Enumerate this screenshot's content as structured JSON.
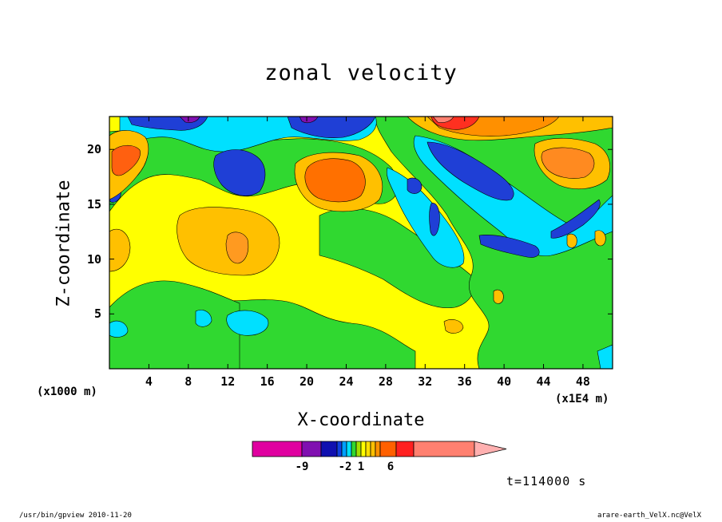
{
  "chart_data": {
    "type": "heatmap",
    "title": "zonal velocity",
    "xlabel": "X-coordinate",
    "ylabel": "Z-coordinate",
    "x_unit_left": "(x1000 m)",
    "x_unit_right": "(x1E4 m)",
    "x_ticks": [
      "4",
      "8",
      "12",
      "16",
      "20",
      "24",
      "28",
      "32",
      "36",
      "40",
      "44",
      "48"
    ],
    "y_ticks": [
      "5",
      "10",
      "15",
      "20"
    ],
    "xlim": [
      0,
      51
    ],
    "ylim": [
      0,
      23
    ],
    "colorbar": {
      "tick_labels": [
        {
          "value": -9,
          "label": "-9"
        },
        {
          "value": -2,
          "label": "-2"
        },
        {
          "value": 1,
          "label": "1"
        },
        {
          "value": 6,
          "label": "6"
        }
      ],
      "colors": [
        "#e000a0",
        "#8010b0",
        "#1010b0",
        "#1040e0",
        "#00a0ff",
        "#00e0ff",
        "#30d830",
        "#a0e000",
        "#ffff00",
        "#ffe000",
        "#ffc000",
        "#ff9000",
        "#ff6000",
        "#ff2020",
        "#ff8070",
        "#ffb0b0"
      ]
    },
    "features": [
      {
        "x": 22,
        "z": 17,
        "sign": "positive",
        "level": "strong",
        "color": "#ff7000"
      },
      {
        "x": 12,
        "z": 11.5,
        "sign": "positive",
        "level": "moderate",
        "color": "#ff9a20"
      },
      {
        "x": 16,
        "z": 18.5,
        "sign": "negative",
        "level": "strong",
        "color": "#1f3fd6"
      },
      {
        "x": 37,
        "z": 19,
        "sign": "negative",
        "level": "strong",
        "color": "#1f3fd6"
      },
      {
        "x": 44,
        "z": 11,
        "sign": "negative",
        "level": "strong",
        "color": "#1f3fd6"
      },
      {
        "x": 36,
        "z": 22.5,
        "sign": "positive",
        "level": "very strong",
        "color": "#ff3020"
      },
      {
        "x": 48,
        "z": 18,
        "sign": "positive",
        "level": "strong",
        "color": "#ff8a20"
      },
      {
        "x": 1.5,
        "z": 18.5,
        "sign": "positive",
        "level": "strong",
        "color": "#ff6010"
      },
      {
        "x": 14,
        "z": 4.5,
        "sign": "negative",
        "level": "weak",
        "color": "#00d0ff"
      }
    ]
  },
  "time_label": "t=114000 s",
  "footer": {
    "left": "/usr/bin/gpview  2010-11-20",
    "right": "arare-earth_VelX.nc@VelX"
  }
}
